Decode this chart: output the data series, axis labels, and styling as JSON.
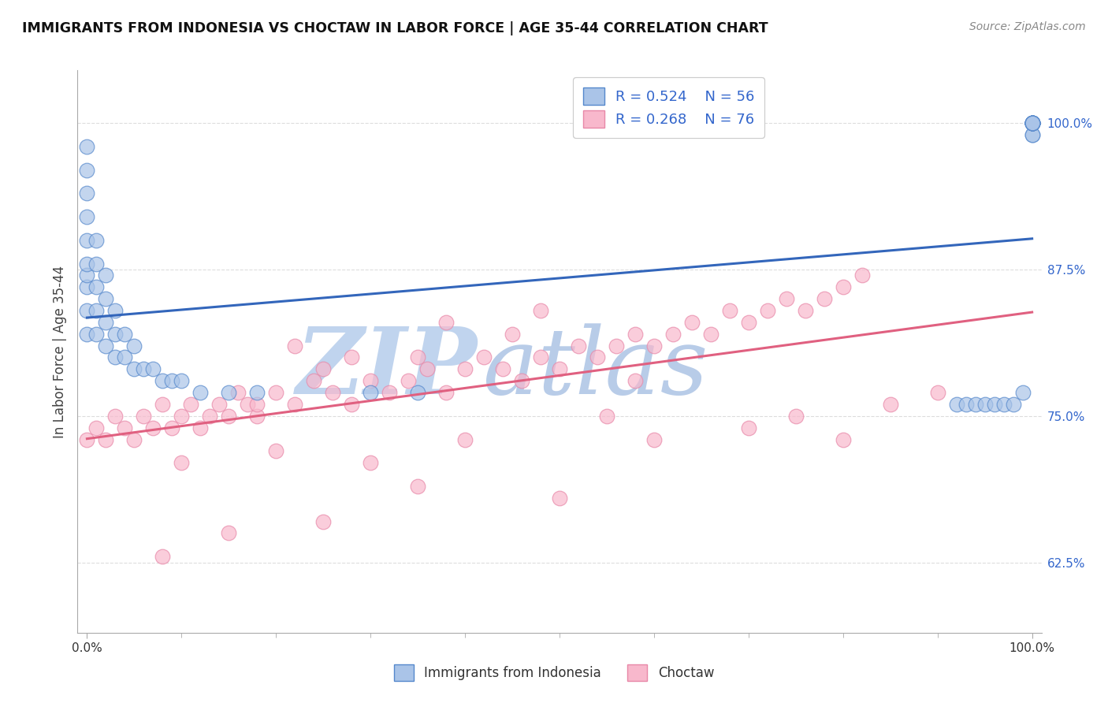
{
  "title": "IMMIGRANTS FROM INDONESIA VS CHOCTAW IN LABOR FORCE | AGE 35-44 CORRELATION CHART",
  "source_text": "Source: ZipAtlas.com",
  "ylabel": "In Labor Force | Age 35-44",
  "x_tick_labels": [
    "0.0%",
    "100.0%"
  ],
  "y_tick_labels_right": [
    "62.5%",
    "75.0%",
    "87.5%",
    "100.0%"
  ],
  "y_tick_positions": [
    0.625,
    0.75,
    0.875,
    1.0
  ],
  "xlim": [
    -0.01,
    1.01
  ],
  "ylim": [
    0.565,
    1.045
  ],
  "blue_fill": "#aac4e8",
  "blue_edge": "#5588cc",
  "pink_fill": "#f8b8cc",
  "pink_edge": "#e888a8",
  "blue_line": "#3366bb",
  "pink_line": "#e06080",
  "legend_text_color": "#3366cc",
  "watermark_color_zip": "#c0d4ee",
  "watermark_color_atlas": "#b8cce8",
  "watermark_text1": "ZIP",
  "watermark_text2": "atlas",
  "background_color": "#ffffff",
  "grid_color": "#dddddd",
  "indo_label": "Immigrants from Indonesia",
  "choctaw_label": "Choctaw",
  "legend_r1": "R = 0.524",
  "legend_n1": "N = 56",
  "legend_r2": "R = 0.268",
  "legend_n2": "N = 76",
  "indonesia_x": [
    0.0,
    0.0,
    0.0,
    0.0,
    0.0,
    0.0,
    0.0,
    0.0,
    0.0,
    0.0,
    0.01,
    0.01,
    0.01,
    0.01,
    0.01,
    0.02,
    0.02,
    0.02,
    0.02,
    0.03,
    0.03,
    0.03,
    0.04,
    0.04,
    0.05,
    0.05,
    0.06,
    0.07,
    0.08,
    0.09,
    0.1,
    0.12,
    0.15,
    0.18,
    0.3,
    0.35,
    0.92,
    0.93,
    0.94,
    0.95,
    0.96,
    0.97,
    0.98,
    0.99,
    1.0,
    1.0,
    1.0,
    1.0,
    1.0,
    1.0,
    1.0,
    1.0,
    1.0,
    1.0,
    1.0,
    1.0
  ],
  "indonesia_y": [
    0.82,
    0.84,
    0.86,
    0.87,
    0.88,
    0.9,
    0.92,
    0.94,
    0.96,
    0.98,
    0.82,
    0.84,
    0.86,
    0.88,
    0.9,
    0.81,
    0.83,
    0.85,
    0.87,
    0.8,
    0.82,
    0.84,
    0.8,
    0.82,
    0.79,
    0.81,
    0.79,
    0.79,
    0.78,
    0.78,
    0.78,
    0.77,
    0.77,
    0.77,
    0.77,
    0.77,
    0.76,
    0.76,
    0.76,
    0.76,
    0.76,
    0.76,
    0.76,
    0.77,
    0.99,
    0.99,
    1.0,
    1.0,
    1.0,
    1.0,
    1.0,
    1.0,
    1.0,
    1.0,
    1.0,
    1.0
  ],
  "choctaw_x": [
    0.0,
    0.01,
    0.02,
    0.03,
    0.04,
    0.05,
    0.06,
    0.07,
    0.08,
    0.09,
    0.1,
    0.11,
    0.12,
    0.13,
    0.14,
    0.15,
    0.16,
    0.17,
    0.18,
    0.2,
    0.22,
    0.24,
    0.26,
    0.28,
    0.3,
    0.32,
    0.34,
    0.36,
    0.38,
    0.4,
    0.42,
    0.44,
    0.46,
    0.48,
    0.5,
    0.52,
    0.54,
    0.56,
    0.58,
    0.6,
    0.62,
    0.64,
    0.66,
    0.68,
    0.7,
    0.72,
    0.74,
    0.76,
    0.78,
    0.8,
    0.82,
    0.1,
    0.2,
    0.3,
    0.4,
    0.5,
    0.18,
    0.25,
    0.35,
    0.45,
    0.55,
    0.22,
    0.28,
    0.38,
    0.48,
    0.58,
    0.15,
    0.25,
    0.35,
    0.08,
    0.6,
    0.7,
    0.75,
    0.8,
    0.85,
    0.9
  ],
  "choctaw_y": [
    0.73,
    0.74,
    0.73,
    0.75,
    0.74,
    0.73,
    0.75,
    0.74,
    0.76,
    0.74,
    0.75,
    0.76,
    0.74,
    0.75,
    0.76,
    0.75,
    0.77,
    0.76,
    0.75,
    0.77,
    0.76,
    0.78,
    0.77,
    0.76,
    0.78,
    0.77,
    0.78,
    0.79,
    0.77,
    0.79,
    0.8,
    0.79,
    0.78,
    0.8,
    0.79,
    0.81,
    0.8,
    0.81,
    0.82,
    0.81,
    0.82,
    0.83,
    0.82,
    0.84,
    0.83,
    0.84,
    0.85,
    0.84,
    0.85,
    0.86,
    0.87,
    0.71,
    0.72,
    0.71,
    0.73,
    0.68,
    0.76,
    0.79,
    0.8,
    0.82,
    0.75,
    0.81,
    0.8,
    0.83,
    0.84,
    0.78,
    0.65,
    0.66,
    0.69,
    0.63,
    0.73,
    0.74,
    0.75,
    0.73,
    0.76,
    0.77
  ]
}
